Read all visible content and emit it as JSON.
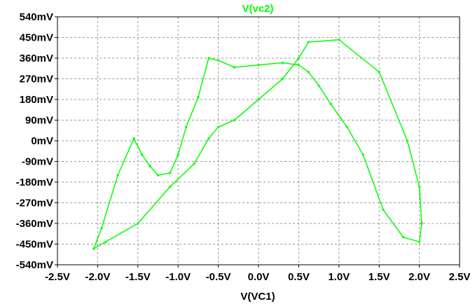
{
  "chart_data": {
    "type": "line",
    "title": "V(vc2)",
    "xlabel": "V(VC1)",
    "ylabel": "",
    "xlim": [
      -2.5,
      2.5
    ],
    "ylim": [
      -540,
      540
    ],
    "x_ticks": [
      -2.5,
      -2.0,
      -1.5,
      -1.0,
      -0.5,
      0.0,
      0.5,
      1.0,
      1.5,
      2.0,
      2.5
    ],
    "x_tick_labels": [
      "-2.5V",
      "-2.0V",
      "-1.5V",
      "-1.0V",
      "-0.5V",
      "0.0V",
      "0.5V",
      "1.0V",
      "1.5V",
      "2.0V",
      "2.5V"
    ],
    "y_ticks": [
      540,
      450,
      360,
      270,
      180,
      90,
      0,
      -90,
      -180,
      -270,
      -360,
      -450,
      -540
    ],
    "y_tick_labels": [
      "540mV",
      "450mV",
      "360mV",
      "270mV",
      "180mV",
      "90mV",
      "0mV",
      "-90mV",
      "-180mV",
      "-270mV",
      "-360mV",
      "-450mV",
      "-540mV"
    ],
    "grid": true,
    "grid_style": "dashed",
    "series": [
      {
        "color": "#00ff00",
        "x": [
          -1.35,
          -1.25,
          -1.1,
          -1.0,
          -0.9,
          -0.75,
          -0.62,
          -0.5,
          -0.3,
          0.0,
          0.3,
          0.5,
          0.62,
          0.75,
          0.9,
          1.1,
          1.3,
          1.55,
          1.8,
          2.0,
          2.03,
          2.0,
          1.85,
          1.5,
          1.0,
          0.62,
          0.5,
          0.3,
          0.0,
          -0.3,
          -0.5,
          -0.62,
          -0.8,
          -1.1,
          -1.5,
          -1.9,
          -2.05,
          -1.95,
          -1.75,
          -1.55,
          -1.45,
          -1.35
        ],
        "y": [
          -110,
          -150,
          -140,
          -60,
          60,
          190,
          360,
          350,
          320,
          330,
          340,
          330,
          300,
          240,
          160,
          60,
          -60,
          -300,
          -420,
          -440,
          -360,
          -200,
          0,
          300,
          440,
          430,
          360,
          270,
          180,
          90,
          60,
          10,
          -100,
          -200,
          -360,
          -440,
          -470,
          -380,
          -150,
          10,
          -60,
          -110
        ]
      }
    ]
  }
}
